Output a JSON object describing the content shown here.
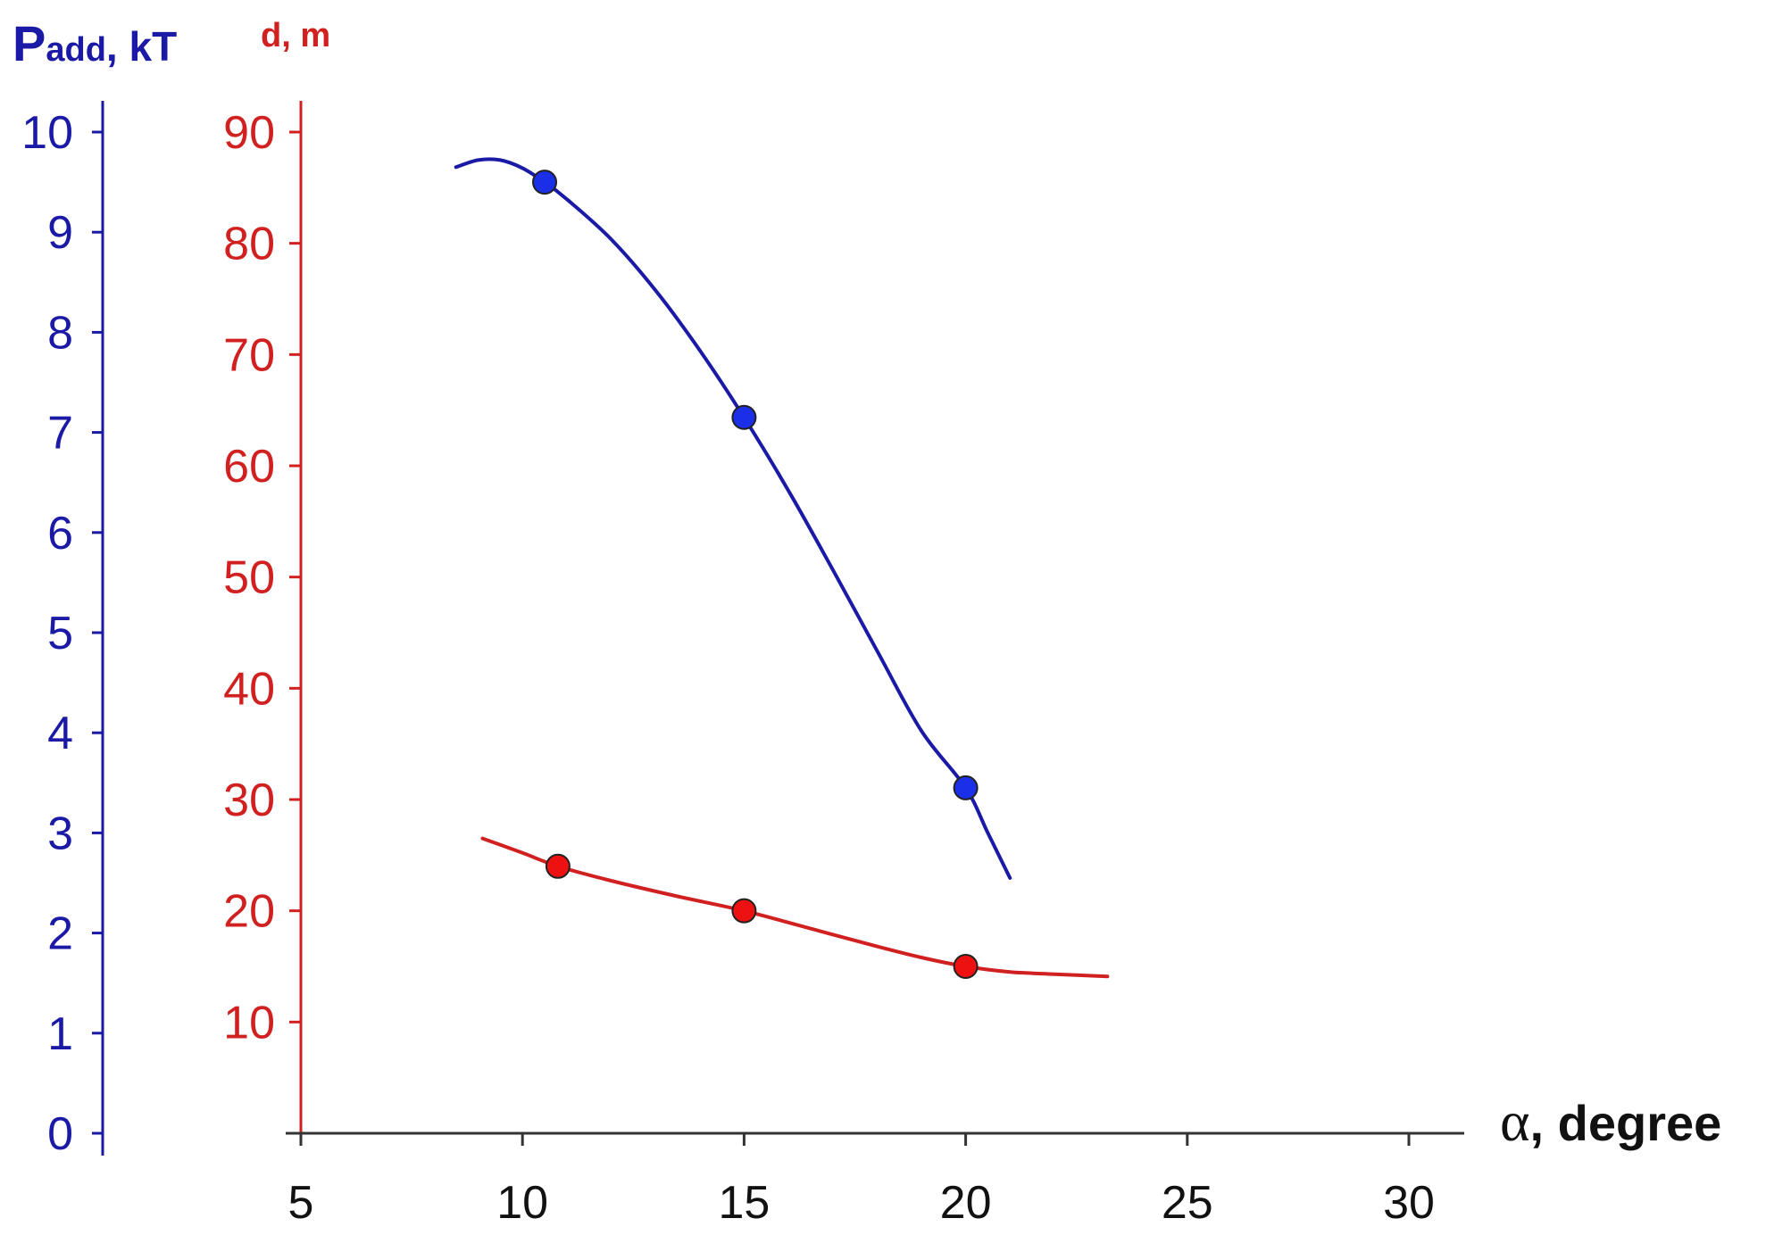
{
  "chart_data": {
    "type": "line",
    "x_axis": {
      "label_symbol": "α",
      "label_text": ", degree",
      "range": [
        5,
        30
      ],
      "ticks": [
        5,
        10,
        15,
        20,
        25,
        30
      ],
      "tick_labels": [
        "5",
        "10",
        "15",
        "20",
        "25",
        "30"
      ]
    },
    "y_axes": [
      {
        "id": "left-blue",
        "label_main": "P",
        "label_sub": "add",
        "label_rest": ", kT",
        "range": [
          0,
          10
        ],
        "ticks": [
          0,
          1,
          2,
          3,
          4,
          5,
          6,
          7,
          8,
          9,
          10
        ],
        "tick_labels": [
          "0",
          "1",
          "2",
          "3",
          "4",
          "5",
          "6",
          "7",
          "8",
          "9",
          "10"
        ],
        "color": "#1a1aa6"
      },
      {
        "id": "right-red",
        "label": "d, m",
        "range": [
          0,
          90
        ],
        "ticks": [
          10,
          20,
          30,
          40,
          50,
          60,
          70,
          80,
          90
        ],
        "tick_labels": [
          "10",
          "20",
          "30",
          "40",
          "50",
          "60",
          "70",
          "80",
          "90"
        ],
        "color": "#d02020"
      }
    ],
    "series": [
      {
        "axis": "left-blue",
        "color": "#1a1aa6",
        "points": [
          [
            10.5,
            9.5
          ],
          [
            15,
            7.15
          ],
          [
            20,
            3.45
          ]
        ],
        "curve": [
          [
            8.5,
            9.65
          ],
          [
            9.0,
            9.72
          ],
          [
            9.5,
            9.72
          ],
          [
            10.0,
            9.64
          ],
          [
            10.5,
            9.5
          ],
          [
            11.0,
            9.33
          ],
          [
            12.0,
            8.93
          ],
          [
            13.0,
            8.42
          ],
          [
            14.0,
            7.82
          ],
          [
            15.0,
            7.15
          ],
          [
            16.0,
            6.42
          ],
          [
            17.0,
            5.63
          ],
          [
            18.0,
            4.82
          ],
          [
            19.0,
            4.02
          ],
          [
            20.0,
            3.45
          ],
          [
            20.5,
            3.0
          ],
          [
            21.0,
            2.55
          ]
        ]
      },
      {
        "axis": "right-red",
        "color": "#d02020",
        "points": [
          [
            10.8,
            24.0
          ],
          [
            15,
            20.0
          ],
          [
            20,
            15.0
          ]
        ],
        "curve": [
          [
            9.1,
            26.5
          ],
          [
            10.0,
            25.2
          ],
          [
            10.8,
            24.0
          ],
          [
            12.0,
            22.7
          ],
          [
            13.5,
            21.3
          ],
          [
            15.0,
            20.0
          ],
          [
            16.5,
            18.4
          ],
          [
            18.0,
            16.8
          ],
          [
            19.0,
            15.8
          ],
          [
            20.0,
            15.0
          ],
          [
            21.0,
            14.5
          ],
          [
            22.0,
            14.3
          ],
          [
            23.2,
            14.1
          ]
        ]
      }
    ]
  }
}
